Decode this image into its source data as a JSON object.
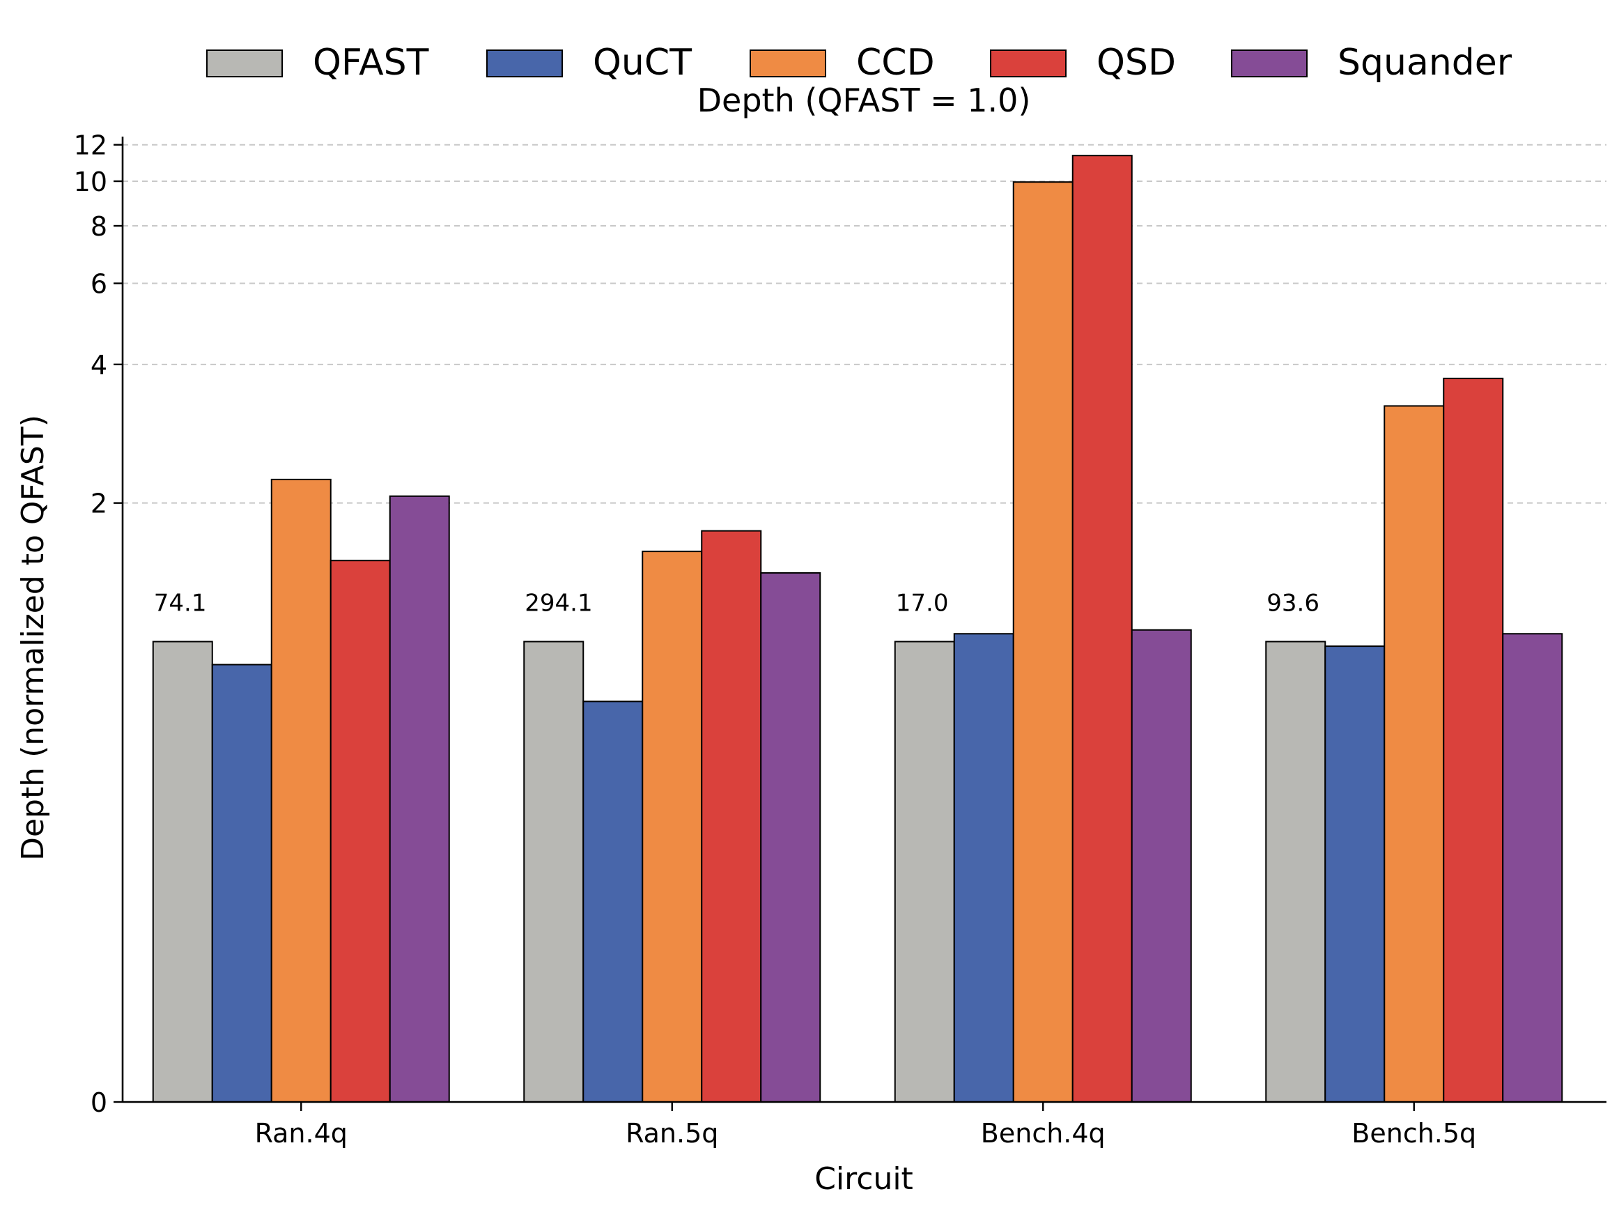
{
  "chart_data": {
    "type": "bar",
    "title": "Depth (QFAST = 1.0)",
    "xlabel": "Circuit",
    "ylabel": "Depth (normalized to QFAST)",
    "y_scale": "symlog",
    "ylim": [
      0,
      12.5
    ],
    "yticks": [
      0,
      2,
      4,
      6,
      8,
      10,
      12
    ],
    "ytick_labels": [
      "0",
      "2",
      "4",
      "6",
      "8",
      "10",
      "12"
    ],
    "grid": "y-dashed",
    "legend_position": "top",
    "categories": [
      "Ran.4q",
      "Ran.5q",
      "Bench.4q",
      "Bench.5q"
    ],
    "series": [
      {
        "name": "QFAST",
        "color": "#b8b8b4",
        "values": [
          1.0,
          1.0,
          1.0,
          1.0
        ]
      },
      {
        "name": "QuCT",
        "color": "#4866aa",
        "values": [
          0.95,
          0.87,
          1.04,
          0.99
        ]
      },
      {
        "name": "CCD",
        "color": "#ef8b44",
        "values": [
          2.25,
          1.57,
          9.96,
          3.25
        ]
      },
      {
        "name": "QSD",
        "color": "#da413c",
        "values": [
          1.5,
          1.74,
          11.37,
          3.73
        ]
      },
      {
        "name": "Squander",
        "color": "#854c96",
        "values": [
          2.07,
          1.41,
          1.06,
          1.04
        ]
      }
    ],
    "annotations": [
      "74.1",
      "294.1",
      "17.0",
      "93.6"
    ]
  }
}
